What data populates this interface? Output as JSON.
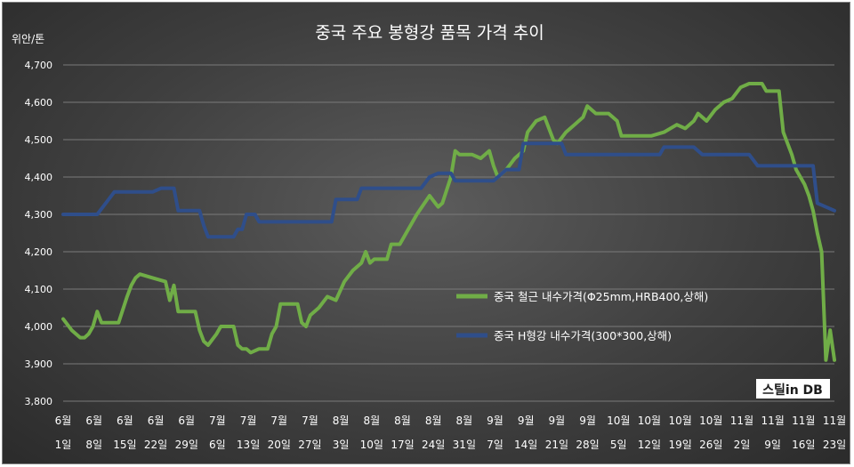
{
  "chart_data": {
    "type": "line",
    "title": "중국 주요 봉형강 품목 가격 추이",
    "ylabel": "위안/톤",
    "xlabel": "",
    "ylim": [
      3800,
      4700
    ],
    "yticks": [
      "3,800",
      "3,900",
      "4,000",
      "4,100",
      "4,200",
      "4,300",
      "4,400",
      "4,500",
      "4,600",
      "4,700"
    ],
    "grid": true,
    "legend_position": "center-right",
    "x_ticks": [
      {
        "month": "6월",
        "day": "1일"
      },
      {
        "month": "6월",
        "day": "8일"
      },
      {
        "month": "6월",
        "day": "15일"
      },
      {
        "month": "6월",
        "day": "22일"
      },
      {
        "month": "6월",
        "day": "29일"
      },
      {
        "month": "7월",
        "day": "6일"
      },
      {
        "month": "7월",
        "day": "13일"
      },
      {
        "month": "7월",
        "day": "20일"
      },
      {
        "month": "7월",
        "day": "27일"
      },
      {
        "month": "8월",
        "day": "3일"
      },
      {
        "month": "8월",
        "day": "10일"
      },
      {
        "month": "8월",
        "day": "17일"
      },
      {
        "month": "8월",
        "day": "24일"
      },
      {
        "month": "8월",
        "day": "31일"
      },
      {
        "month": "9월",
        "day": "7일"
      },
      {
        "month": "9월",
        "day": "14일"
      },
      {
        "month": "9월",
        "day": "21일"
      },
      {
        "month": "9월",
        "day": "28일"
      },
      {
        "month": "10월",
        "day": "5일"
      },
      {
        "month": "10월",
        "day": "12일"
      },
      {
        "month": "10월",
        "day": "19일"
      },
      {
        "month": "10월",
        "day": "26일"
      },
      {
        "month": "11월",
        "day": "2일"
      },
      {
        "month": "11월",
        "day": "9일"
      },
      {
        "month": "11월",
        "day": "16일"
      },
      {
        "month": "11월",
        "day": "23일"
      }
    ],
    "series": [
      {
        "name": "중국 철근 내수가격(Φ25mm,HRB400,상해)",
        "color": "#70ad47",
        "points": [
          [
            "06-01",
            4020
          ],
          [
            "06-03",
            3990
          ],
          [
            "06-05",
            3970
          ],
          [
            "06-06",
            3970
          ],
          [
            "06-07",
            3980
          ],
          [
            "06-08",
            4000
          ],
          [
            "06-09",
            4040
          ],
          [
            "06-10",
            4010
          ],
          [
            "06-12",
            4010
          ],
          [
            "06-14",
            4010
          ],
          [
            "06-16",
            4080
          ],
          [
            "06-17",
            4110
          ],
          [
            "06-18",
            4130
          ],
          [
            "06-19",
            4140
          ],
          [
            "06-22",
            4130
          ],
          [
            "06-25",
            4120
          ],
          [
            "06-26",
            4070
          ],
          [
            "06-27",
            4110
          ],
          [
            "06-28",
            4040
          ],
          [
            "06-30",
            4040
          ],
          [
            "07-02",
            4040
          ],
          [
            "07-03",
            3990
          ],
          [
            "07-04",
            3960
          ],
          [
            "07-05",
            3950
          ],
          [
            "07-07",
            3980
          ],
          [
            "07-08",
            4000
          ],
          [
            "07-11",
            4000
          ],
          [
            "07-12",
            3950
          ],
          [
            "07-13",
            3940
          ],
          [
            "07-14",
            3940
          ],
          [
            "07-15",
            3930
          ],
          [
            "07-17",
            3940
          ],
          [
            "07-19",
            3940
          ],
          [
            "07-20",
            3980
          ],
          [
            "07-21",
            4000
          ],
          [
            "07-22",
            4060
          ],
          [
            "07-26",
            4060
          ],
          [
            "07-27",
            4010
          ],
          [
            "07-28",
            4000
          ],
          [
            "07-29",
            4030
          ],
          [
            "07-31",
            4050
          ],
          [
            "08-02",
            4080
          ],
          [
            "08-04",
            4070
          ],
          [
            "08-06",
            4120
          ],
          [
            "08-08",
            4150
          ],
          [
            "08-10",
            4170
          ],
          [
            "08-11",
            4200
          ],
          [
            "08-12",
            4170
          ],
          [
            "08-13",
            4180
          ],
          [
            "08-16",
            4180
          ],
          [
            "08-17",
            4220
          ],
          [
            "08-19",
            4220
          ],
          [
            "08-21",
            4260
          ],
          [
            "08-23",
            4300
          ],
          [
            "08-26",
            4350
          ],
          [
            "08-28",
            4320
          ],
          [
            "08-29",
            4330
          ],
          [
            "08-31",
            4400
          ],
          [
            "09-01",
            4470
          ],
          [
            "09-02",
            4460
          ],
          [
            "09-05",
            4460
          ],
          [
            "09-07",
            4450
          ],
          [
            "09-09",
            4470
          ],
          [
            "09-10",
            4430
          ],
          [
            "09-11",
            4400
          ],
          [
            "09-13",
            4420
          ],
          [
            "09-15",
            4450
          ],
          [
            "09-17",
            4470
          ],
          [
            "09-18",
            4520
          ],
          [
            "09-20",
            4550
          ],
          [
            "09-22",
            4560
          ],
          [
            "09-23",
            4530
          ],
          [
            "09-24",
            4500
          ],
          [
            "09-25",
            4490
          ],
          [
            "09-27",
            4520
          ],
          [
            "09-29",
            4540
          ],
          [
            "10-01",
            4560
          ],
          [
            "10-02",
            4590
          ],
          [
            "10-04",
            4570
          ],
          [
            "10-07",
            4570
          ],
          [
            "10-08",
            4560
          ],
          [
            "10-09",
            4550
          ],
          [
            "10-10",
            4510
          ],
          [
            "10-13",
            4510
          ],
          [
            "10-17",
            4510
          ],
          [
            "10-20",
            4520
          ],
          [
            "10-23",
            4540
          ],
          [
            "10-25",
            4530
          ],
          [
            "10-27",
            4550
          ],
          [
            "10-28",
            4570
          ],
          [
            "10-30",
            4550
          ],
          [
            "11-01",
            4580
          ],
          [
            "11-03",
            4600
          ],
          [
            "11-05",
            4610
          ],
          [
            "11-07",
            4640
          ],
          [
            "11-09",
            4650
          ],
          [
            "11-12",
            4650
          ],
          [
            "11-13",
            4630
          ],
          [
            "11-16",
            4630
          ],
          [
            "11-17",
            4520
          ],
          [
            "11-18",
            4490
          ],
          [
            "11-19",
            4460
          ],
          [
            "11-20",
            4420
          ],
          [
            "11-21",
            4400
          ],
          [
            "11-22",
            4380
          ],
          [
            "11-23",
            4350
          ],
          [
            "11-24",
            4310
          ],
          [
            "11-25",
            4250
          ],
          [
            "11-26",
            4200
          ],
          [
            "11-27",
            3910
          ],
          [
            "11-28",
            3990
          ],
          [
            "11-29",
            3910
          ]
        ]
      },
      {
        "name": "중국 H형강 내수가격(300*300,상해)",
        "color": "#2f4e8a",
        "points": [
          [
            "06-01",
            4300
          ],
          [
            "06-06",
            4300
          ],
          [
            "06-09",
            4300
          ],
          [
            "06-11",
            4330
          ],
          [
            "06-13",
            4360
          ],
          [
            "06-22",
            4360
          ],
          [
            "06-24",
            4370
          ],
          [
            "06-27",
            4370
          ],
          [
            "06-28",
            4310
          ],
          [
            "07-03",
            4310
          ],
          [
            "07-04",
            4270
          ],
          [
            "07-05",
            4240
          ],
          [
            "07-11",
            4240
          ],
          [
            "07-12",
            4260
          ],
          [
            "07-13",
            4260
          ],
          [
            "07-14",
            4300
          ],
          [
            "07-16",
            4300
          ],
          [
            "07-17",
            4280
          ],
          [
            "07-31",
            4280
          ],
          [
            "08-03",
            4280
          ],
          [
            "08-04",
            4340
          ],
          [
            "08-09",
            4340
          ],
          [
            "08-10",
            4370
          ],
          [
            "08-24",
            4370
          ],
          [
            "08-26",
            4400
          ],
          [
            "08-28",
            4410
          ],
          [
            "08-31",
            4410
          ],
          [
            "09-01",
            4390
          ],
          [
            "09-10",
            4390
          ],
          [
            "09-13",
            4420
          ],
          [
            "09-16",
            4420
          ],
          [
            "09-17",
            4490
          ],
          [
            "09-26",
            4490
          ],
          [
            "09-27",
            4460
          ],
          [
            "10-19",
            4460
          ],
          [
            "10-20",
            4480
          ],
          [
            "10-27",
            4480
          ],
          [
            "10-29",
            4460
          ],
          [
            "11-07",
            4460
          ],
          [
            "11-09",
            4460
          ],
          [
            "11-11",
            4430
          ],
          [
            "11-24",
            4430
          ],
          [
            "11-25",
            4330
          ],
          [
            "11-29",
            4310
          ]
        ]
      }
    ],
    "watermark": "스틸in DB"
  }
}
